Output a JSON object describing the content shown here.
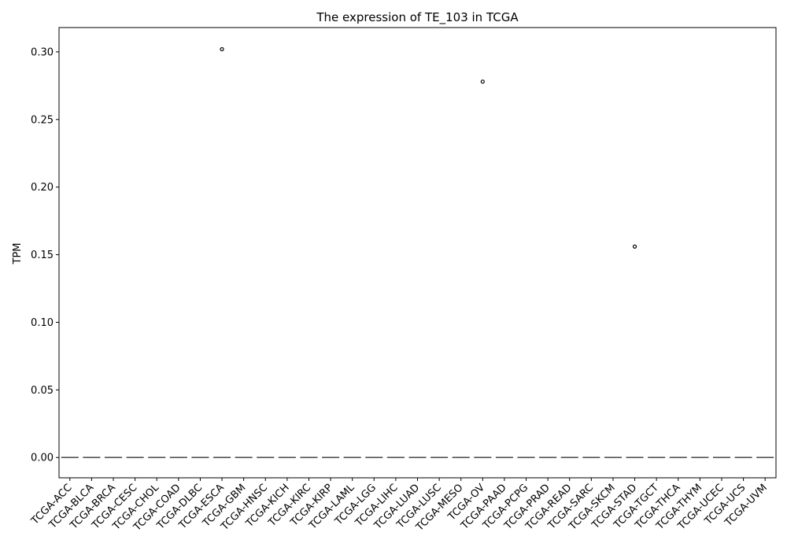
{
  "chart_data": {
    "type": "box",
    "title": "The expression of TE_103 in TCGA",
    "xlabel": "",
    "ylabel": "TPM",
    "ylim": [
      -0.015,
      0.318
    ],
    "yticks": [
      0.0,
      0.05,
      0.1,
      0.15,
      0.2,
      0.25,
      0.3
    ],
    "ytick_labels": [
      "0.00",
      "0.05",
      "0.10",
      "0.15",
      "0.20",
      "0.25",
      "0.30"
    ],
    "grid": false,
    "categories": [
      "TCGA-ACC",
      "TCGA-BLCA",
      "TCGA-BRCA",
      "TCGA-CESC",
      "TCGA-CHOL",
      "TCGA-COAD",
      "TCGA-DLBC",
      "TCGA-ESCA",
      "TCGA-GBM",
      "TCGA-HNSC",
      "TCGA-KICH",
      "TCGA-KIRC",
      "TCGA-KIRP",
      "TCGA-LAML",
      "TCGA-LGG",
      "TCGA-LIHC",
      "TCGA-LUAD",
      "TCGA-LUSC",
      "TCGA-MESO",
      "TCGA-OV",
      "TCGA-PAAD",
      "TCGA-PCPG",
      "TCGA-PRAD",
      "TCGA-READ",
      "TCGA-SARC",
      "TCGA-SKCM",
      "TCGA-STAD",
      "TCGA-TGCT",
      "TCGA-THCA",
      "TCGA-THYM",
      "TCGA-UCEC",
      "TCGA-UCS",
      "TCGA-UVM"
    ],
    "median": 0.0,
    "outliers": [
      {
        "category": "TCGA-ESCA",
        "value": 0.302
      },
      {
        "category": "TCGA-OV",
        "value": 0.278
      },
      {
        "category": "TCGA-STAD",
        "value": 0.156
      }
    ],
    "colors": {
      "box_line": "#555555",
      "outlier_edge": "#000000",
      "axis": "#000000"
    }
  }
}
